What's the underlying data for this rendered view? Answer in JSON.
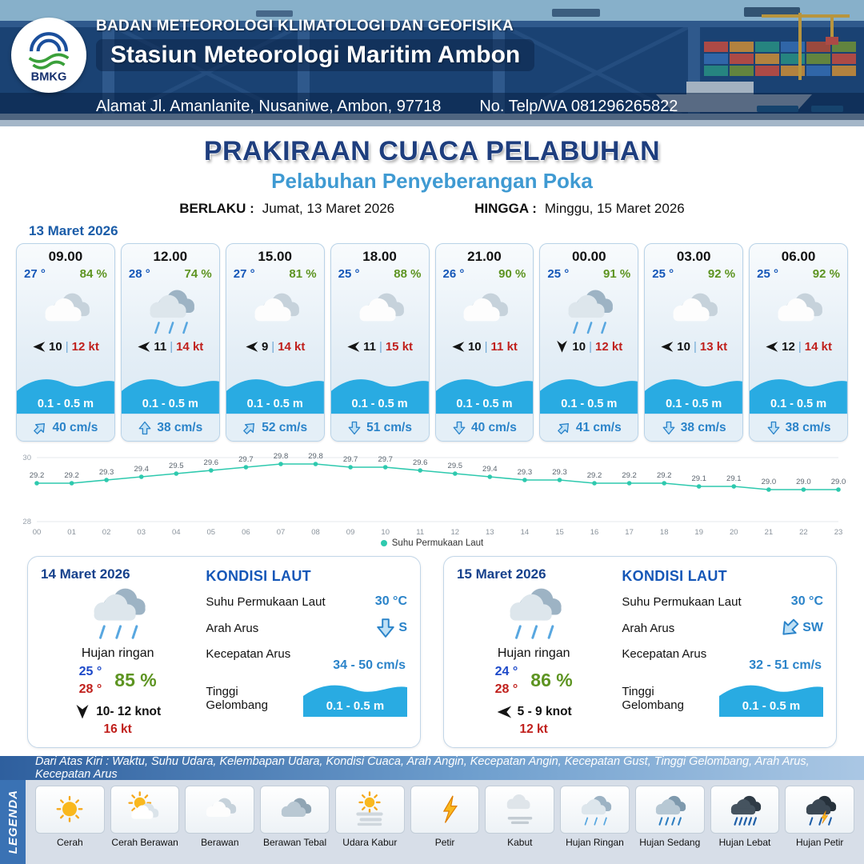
{
  "header": {
    "agency": "BADAN METEOROLOGI KLIMATOLOGI DAN GEOFISIKA",
    "station": "Stasiun Meteorologi Maritim Ambon",
    "address": "Alamat Jl. Amanlanite, Nusaniwe, Ambon, 97718",
    "contact": "No. Telp/WA  081296265822",
    "logo_text": "BMKG"
  },
  "title": {
    "main": "PRAKIRAAN CUACA PELABUHAN",
    "subtitle": "Pelabuhan Penyeberangan Poka",
    "valid_from_label": "BERLAKU :",
    "valid_from": "Jumat, 13 Maret 2026",
    "valid_to_label": "HINGGA :",
    "valid_to": "Minggu, 15 Maret 2026"
  },
  "forecast": {
    "date": "13 Maret 2026",
    "separator": "|",
    "cards": [
      {
        "time": "09.00",
        "temp": "27 °",
        "humidity": "84 %",
        "weather": "berawan",
        "wind_speed": "10",
        "gust": "12 kt",
        "wind_dir": 0,
        "wave": "0.1 - 0.5 m",
        "current": "40 cm/s",
        "current_dir": 45
      },
      {
        "time": "12.00",
        "temp": "28 °",
        "humidity": "74 %",
        "weather": "hujan-ringan",
        "wind_speed": "11",
        "gust": "14 kt",
        "wind_dir": 0,
        "wave": "0.1 - 0.5 m",
        "current": "38 cm/s",
        "current_dir": 0
      },
      {
        "time": "15.00",
        "temp": "27 °",
        "humidity": "81 %",
        "weather": "berawan",
        "wind_speed": "9",
        "gust": "14 kt",
        "wind_dir": 0,
        "wave": "0.1 - 0.5 m",
        "current": "52 cm/s",
        "current_dir": 45
      },
      {
        "time": "18.00",
        "temp": "25 °",
        "humidity": "88 %",
        "weather": "berawan",
        "wind_speed": "11",
        "gust": "15 kt",
        "wind_dir": 0,
        "wave": "0.1 - 0.5 m",
        "current": "51 cm/s",
        "current_dir": 180
      },
      {
        "time": "21.00",
        "temp": "26 °",
        "humidity": "90 %",
        "weather": "berawan",
        "wind_speed": "10",
        "gust": "11 kt",
        "wind_dir": 0,
        "wave": "0.1 - 0.5 m",
        "current": "40 cm/s",
        "current_dir": 180
      },
      {
        "time": "00.00",
        "temp": "25 °",
        "humidity": "91 %",
        "weather": "hujan-ringan",
        "wind_speed": "10",
        "gust": "12 kt",
        "wind_dir": 270,
        "wave": "0.1 - 0.5 m",
        "current": "41 cm/s",
        "current_dir": 45
      },
      {
        "time": "03.00",
        "temp": "25 °",
        "humidity": "92 %",
        "weather": "berawan",
        "wind_speed": "10",
        "gust": "13 kt",
        "wind_dir": 0,
        "wave": "0.1 - 0.5 m",
        "current": "38 cm/s",
        "current_dir": 180
      },
      {
        "time": "06.00",
        "temp": "25 °",
        "humidity": "92 %",
        "weather": "berawan",
        "wind_speed": "12",
        "gust": "14 kt",
        "wind_dir": 0,
        "wave": "0.1 - 0.5 m",
        "current": "38 cm/s",
        "current_dir": 180
      }
    ]
  },
  "chart_data": {
    "type": "line",
    "series_name": "Suhu Permukaan Laut",
    "x": [
      "00",
      "01",
      "02",
      "03",
      "04",
      "05",
      "06",
      "07",
      "08",
      "09",
      "10",
      "11",
      "12",
      "13",
      "14",
      "15",
      "16",
      "17",
      "18",
      "19",
      "20",
      "21",
      "22",
      "23"
    ],
    "values": [
      29.2,
      29.2,
      29.3,
      29.4,
      29.5,
      29.6,
      29.7,
      29.8,
      29.8,
      29.7,
      29.7,
      29.6,
      29.5,
      29.4,
      29.3,
      29.3,
      29.2,
      29.2,
      29.2,
      29.1,
      29.1,
      29.0,
      29.0,
      29.0
    ],
    "ylim": [
      28,
      30
    ],
    "ytick_labels": [
      "30",
      "28"
    ],
    "line_color": "#2ec9ae",
    "grid": true,
    "legend_position": "bottom"
  },
  "days": [
    {
      "date": "14 Maret 2026",
      "weather": "hujan-ringan",
      "condition": "Hujan ringan",
      "temp_min": "25 °",
      "temp_max": "28 °",
      "humidity": "85 %",
      "wind": "10- 12 knot",
      "gust": "16 kt",
      "wind_dir": 270,
      "sea": {
        "heading": "KONDISI LAUT",
        "sst_label": "Suhu Permukaan Laut",
        "sst": "30 °C",
        "dir_label": "Arah Arus",
        "dir": "S",
        "dir_deg": 180,
        "speed_label": "Kecepatan Arus",
        "speed": "34 - 50 cm/s",
        "wave_label": "Tinggi Gelombang",
        "wave": "0.1 - 0.5 m"
      }
    },
    {
      "date": "15 Maret 2026",
      "weather": "hujan-ringan",
      "condition": "Hujan ringan",
      "temp_min": "24 °",
      "temp_max": "28 °",
      "humidity": "86 %",
      "wind": "5 - 9 knot",
      "gust": "12 kt",
      "wind_dir": 0,
      "sea": {
        "heading": "KONDISI LAUT",
        "sst_label": "Suhu Permukaan Laut",
        "sst": "30 °C",
        "dir_label": "Arah Arus",
        "dir": "SW",
        "dir_deg": 225,
        "speed_label": "Kecepatan Arus",
        "speed": "32 - 51 cm/s",
        "wave_label": "Tinggi Gelombang",
        "wave": "0.1 - 0.5 m"
      }
    }
  ],
  "legend": {
    "label": "LEGENDA",
    "note": "Dari Atas Kiri : Waktu, Suhu Udara, Kelembapan Udara, Kondisi Cuaca, Arah Angin, Kecepatan Angin, Kecepatan Gust, Tinggi Gelombang, Arah Arus, Kecepatan Arus",
    "items": [
      {
        "label": "Cerah",
        "icon": "cerah"
      },
      {
        "label": "Cerah Berawan",
        "icon": "cerah-berawan"
      },
      {
        "label": "Berawan",
        "icon": "berawan"
      },
      {
        "label": "Berawan Tebal",
        "icon": "berawan-tebal"
      },
      {
        "label": "Udara Kabur",
        "icon": "udara-kabur"
      },
      {
        "label": "Petir",
        "icon": "petir"
      },
      {
        "label": "Kabut",
        "icon": "kabut"
      },
      {
        "label": "Hujan Ringan",
        "icon": "hujan-ringan"
      },
      {
        "label": "Hujan Sedang",
        "icon": "hujan-sedang"
      },
      {
        "label": "Hujan Lebat",
        "icon": "hujan-lebat"
      },
      {
        "label": "Hujan Petir",
        "icon": "hujan-petir"
      }
    ]
  },
  "colors": {
    "accent_blue": "#1557b8",
    "humidity_green": "#5d9421",
    "gust_red": "#c0201c",
    "wave_blue": "#29abe2",
    "current_blue": "#2a83c9",
    "chart_teal": "#2ec9ae",
    "title_navy": "#1e3e7e",
    "subtitle_blue": "#3f9ad2"
  }
}
